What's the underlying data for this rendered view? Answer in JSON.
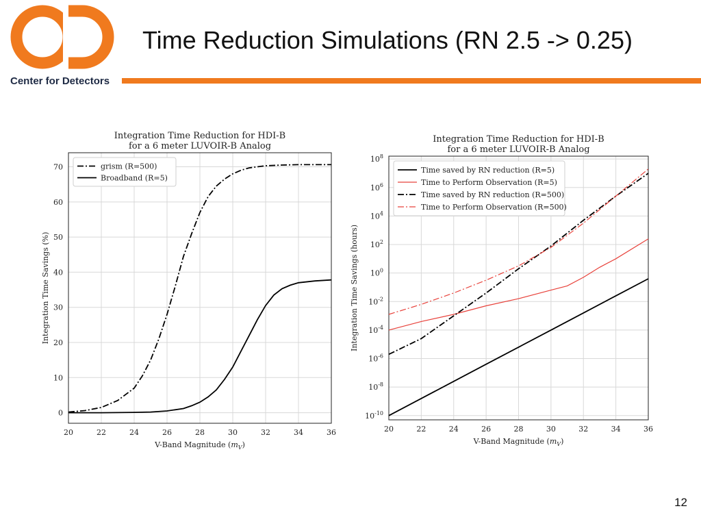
{
  "header": {
    "title": "Time Reduction Simulations (RN 2.5 -> 0.25)",
    "logo_text": "Center for Detectors",
    "logo_color": "#f07a1e",
    "rule_color": "#f07a1e"
  },
  "page_number": "12",
  "chart_data": [
    {
      "type": "line",
      "title": "Integration Time Reduction for HDI-B",
      "subtitle": "for a 6 meter LUVOIR-B Analog",
      "xlabel": "V-Band Magnitude (m_V)",
      "ylabel": "Integration Time Savings (%)",
      "xlim": [
        20,
        36
      ],
      "ylim": [
        -3,
        74
      ],
      "xticks": [
        20,
        22,
        24,
        26,
        28,
        30,
        32,
        34,
        36
      ],
      "yticks": [
        0,
        10,
        20,
        30,
        40,
        50,
        60,
        70
      ],
      "grid": true,
      "legend_position": "top-left",
      "series": [
        {
          "name": "grism (R=500)",
          "style": "dashdot",
          "color": "#000000",
          "x": [
            20,
            21,
            22,
            23,
            24,
            24.5,
            25,
            25.5,
            26,
            26.5,
            27,
            27.5,
            28,
            28.5,
            29,
            29.5,
            30,
            30.5,
            31,
            32,
            33,
            34,
            35,
            36
          ],
          "y": [
            0.2,
            0.6,
            1.5,
            3.5,
            7,
            10.5,
            15,
            21,
            28,
            36,
            44.5,
            51,
            57,
            61.5,
            64.5,
            66.5,
            68,
            69,
            69.7,
            70.3,
            70.5,
            70.6,
            70.6,
            70.6
          ]
        },
        {
          "name": "Broadband (R=5)",
          "style": "solid",
          "color": "#000000",
          "x": [
            20,
            22,
            24,
            25,
            26,
            27,
            27.5,
            28,
            28.5,
            29,
            29.5,
            30,
            30.5,
            31,
            31.5,
            32,
            32.5,
            33,
            33.5,
            34,
            35,
            36
          ],
          "y": [
            0,
            0,
            0.1,
            0.2,
            0.5,
            1.2,
            2,
            3,
            4.5,
            6.5,
            9.5,
            13,
            17.5,
            22,
            26.5,
            30.5,
            33.5,
            35.3,
            36.3,
            37,
            37.5,
            37.8
          ]
        }
      ]
    },
    {
      "type": "line",
      "title": "Integration Time Reduction for HDI-B",
      "subtitle": "for a 6 meter LUVOIR-B Analog",
      "xlabel": "V-Band Magnitude (m_V)",
      "ylabel": "Integration Time Savings (hours)",
      "yscale": "log",
      "xlim": [
        20,
        36
      ],
      "ylim_log10": [
        -10.3,
        8.2
      ],
      "xticks": [
        20,
        22,
        24,
        26,
        28,
        30,
        32,
        34,
        36
      ],
      "yticks_log10": [
        -10,
        -8,
        -6,
        -4,
        -2,
        0,
        2,
        4,
        6,
        8
      ],
      "grid": true,
      "legend_position": "top-left",
      "series": [
        {
          "name": "Time saved by RN reduction (R=5)",
          "style": "solid",
          "color": "#000000",
          "x": [
            20,
            22,
            24,
            26,
            28,
            30,
            32,
            34,
            36
          ],
          "log10_y": [
            -10,
            -8.8,
            -7.6,
            -6.4,
            -5.2,
            -4,
            -2.8,
            -1.6,
            -0.4
          ]
        },
        {
          "name": "Time to Perform Observation (R=5)",
          "style": "solid",
          "color": "#e8413a",
          "x": [
            20,
            22,
            24,
            26,
            28,
            30,
            31,
            32,
            33,
            34,
            36
          ],
          "log10_y": [
            -4,
            -3.4,
            -2.9,
            -2.3,
            -1.8,
            -1.2,
            -0.9,
            -0.3,
            0.4,
            1,
            2.4
          ]
        },
        {
          "name": "Time saved by RN reduction (R=500)",
          "style": "dashdot",
          "color": "#000000",
          "x": [
            20,
            22,
            24,
            26,
            28,
            30,
            32,
            34,
            36
          ],
          "log10_y": [
            -5.7,
            -4.6,
            -3,
            -1.4,
            0.3,
            1.9,
            3.7,
            5.4,
            7
          ]
        },
        {
          "name": "Time to Perform Observation (R=500)",
          "style": "dashdot",
          "color": "#e8413a",
          "x": [
            20,
            22,
            24,
            26,
            28,
            30,
            32,
            34,
            36
          ],
          "log10_y": [
            -2.9,
            -2.2,
            -1.4,
            -0.5,
            0.5,
            1.8,
            3.5,
            5.4,
            7.3
          ]
        }
      ]
    }
  ]
}
